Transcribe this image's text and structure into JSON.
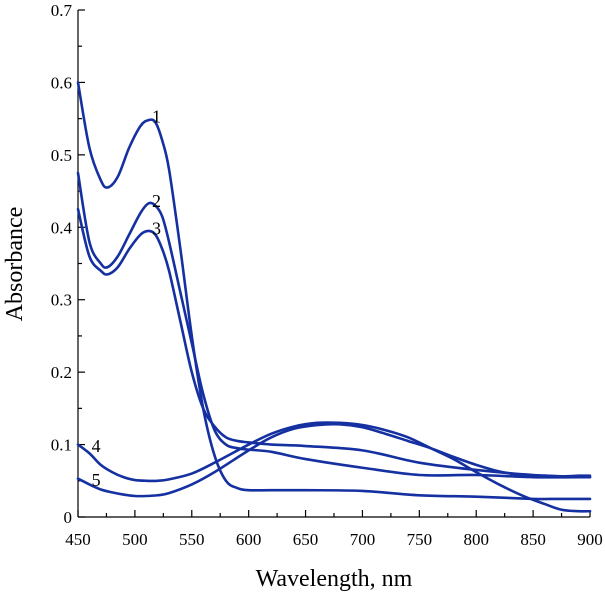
{
  "chart_data": {
    "type": "line",
    "title": "",
    "xlabel": "Wavelength, nm",
    "ylabel": "Absorbance",
    "xlim": [
      450,
      900
    ],
    "ylim": [
      0,
      0.7
    ],
    "x_ticks": [
      450,
      500,
      550,
      600,
      650,
      700,
      750,
      800,
      850,
      900
    ],
    "y_ticks": [
      0,
      0.1,
      0.2,
      0.3,
      0.4,
      0.5,
      0.6,
      0.7
    ],
    "x_tick_labels": [
      "450",
      "500",
      "550",
      "600",
      "650",
      "700",
      "750",
      "800",
      "850",
      "900"
    ],
    "y_tick_labels": [
      "0",
      "0.1",
      "0.2",
      "0.3",
      "0.4",
      "0.5",
      "0.6",
      "0.7"
    ],
    "grid": false,
    "line_color": "#1530a0",
    "series": [
      {
        "name": "1",
        "label_at": [
          515,
          0.545
        ],
        "x": [
          450,
          460,
          470,
          476,
          485,
          495,
          505,
          512,
          518,
          524,
          530,
          540,
          550,
          560,
          570,
          580,
          590,
          600,
          620,
          650,
          700,
          750,
          800,
          850,
          870,
          880,
          900
        ],
        "y": [
          0.6,
          0.51,
          0.465,
          0.455,
          0.47,
          0.51,
          0.54,
          0.548,
          0.545,
          0.52,
          0.48,
          0.37,
          0.25,
          0.15,
          0.085,
          0.05,
          0.04,
          0.037,
          0.037,
          0.037,
          0.036,
          0.03,
          0.028,
          0.025,
          0.025,
          0.025,
          0.025
        ]
      },
      {
        "name": "2",
        "label_at": [
          515,
          0.428
        ],
        "x": [
          450,
          460,
          470,
          476,
          485,
          495,
          505,
          512,
          518,
          524,
          530,
          540,
          550,
          560,
          570,
          580,
          590,
          600,
          620,
          650,
          700,
          750,
          800,
          850,
          900
        ],
        "y": [
          0.475,
          0.38,
          0.35,
          0.345,
          0.36,
          0.39,
          0.42,
          0.433,
          0.43,
          0.415,
          0.38,
          0.31,
          0.24,
          0.17,
          0.12,
          0.1,
          0.095,
          0.093,
          0.09,
          0.08,
          0.068,
          0.058,
          0.058,
          0.055,
          0.055
        ]
      },
      {
        "name": "3",
        "label_at": [
          515,
          0.39
        ],
        "x": [
          450,
          460,
          470,
          476,
          485,
          495,
          505,
          512,
          518,
          524,
          530,
          540,
          550,
          560,
          570,
          580,
          590,
          600,
          620,
          650,
          700,
          750,
          800,
          850,
          900
        ],
        "y": [
          0.425,
          0.36,
          0.34,
          0.335,
          0.345,
          0.37,
          0.39,
          0.395,
          0.39,
          0.37,
          0.34,
          0.27,
          0.2,
          0.15,
          0.125,
          0.11,
          0.105,
          0.103,
          0.1,
          0.098,
          0.092,
          0.075,
          0.065,
          0.058,
          0.055
        ]
      },
      {
        "name": "4",
        "label_at": [
          462,
          0.09
        ],
        "x": [
          450,
          460,
          470,
          480,
          490,
          500,
          510,
          520,
          530,
          550,
          570,
          600,
          620,
          640,
          660,
          680,
          700,
          720,
          740,
          760,
          780,
          800,
          820,
          840,
          860,
          875,
          890,
          900
        ],
        "y": [
          0.1,
          0.088,
          0.072,
          0.062,
          0.055,
          0.051,
          0.05,
          0.05,
          0.052,
          0.06,
          0.075,
          0.1,
          0.115,
          0.125,
          0.13,
          0.13,
          0.127,
          0.12,
          0.11,
          0.095,
          0.08,
          0.062,
          0.045,
          0.03,
          0.018,
          0.01,
          0.008,
          0.008
        ]
      },
      {
        "name": "5",
        "label_at": [
          462,
          0.043
        ],
        "x": [
          450,
          460,
          470,
          480,
          490,
          500,
          510,
          520,
          530,
          550,
          570,
          600,
          620,
          640,
          660,
          680,
          700,
          720,
          740,
          760,
          780,
          800,
          820,
          840,
          860,
          875,
          890,
          900
        ],
        "y": [
          0.053,
          0.045,
          0.038,
          0.034,
          0.031,
          0.029,
          0.029,
          0.03,
          0.033,
          0.045,
          0.062,
          0.092,
          0.11,
          0.122,
          0.127,
          0.128,
          0.124,
          0.115,
          0.105,
          0.095,
          0.083,
          0.072,
          0.063,
          0.058,
          0.057,
          0.056,
          0.057,
          0.057
        ]
      }
    ]
  }
}
